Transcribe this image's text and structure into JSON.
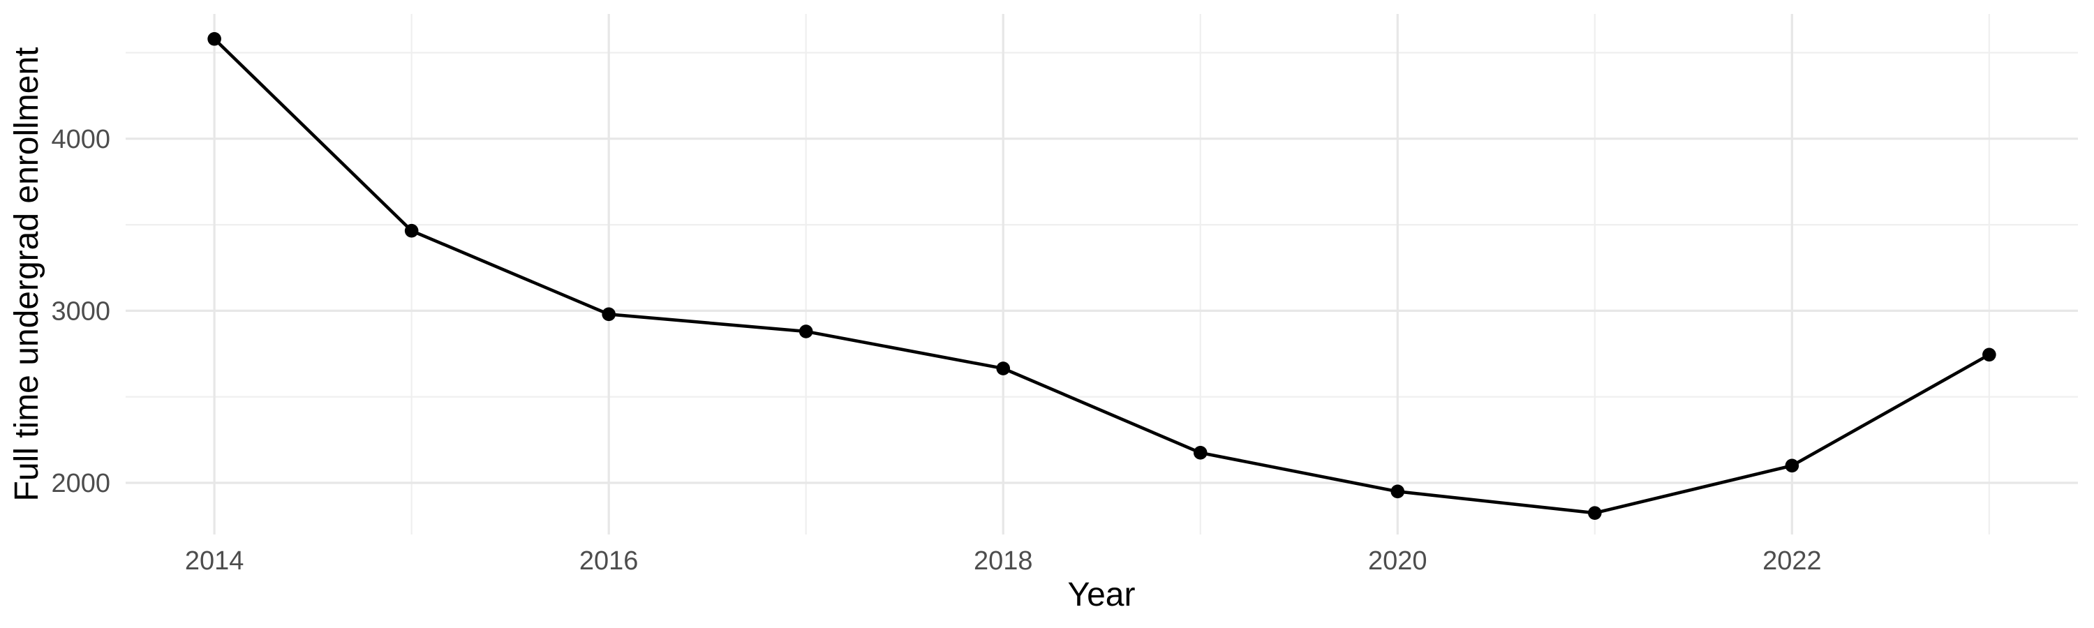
{
  "chart_data": {
    "type": "line",
    "title": "",
    "xlabel": "Year",
    "ylabel": "Full time undergrad enrollment",
    "x": [
      2014,
      2015,
      2016,
      2017,
      2018,
      2019,
      2020,
      2021,
      2022,
      2023
    ],
    "series": [
      {
        "name": "Full time undergrad enrollment",
        "values": [
          4580,
          3465,
          2980,
          2880,
          2665,
          2175,
          1950,
          1825,
          2100,
          2745
        ]
      }
    ],
    "x_major_ticks": [
      2014,
      2016,
      2018,
      2020,
      2022
    ],
    "x_minor_gridlines": [
      2015,
      2017,
      2019,
      2021,
      2023
    ],
    "y_major_ticks": [
      2000,
      3000,
      4000
    ],
    "y_minor_gridlines": [
      2500,
      3500,
      4500
    ],
    "xlim": [
      2013.55,
      2023.45
    ],
    "ylim": [
      1700,
      4725
    ],
    "grid": true,
    "legend_position": "none",
    "colors": {
      "line": "#000000",
      "point": "#000000",
      "major_grid": "#E7E7E7",
      "minor_grid": "#EFEFEF",
      "tick_label": "#4D4D4D",
      "axis_title": "#000000",
      "background": "#FFFFFF"
    }
  }
}
